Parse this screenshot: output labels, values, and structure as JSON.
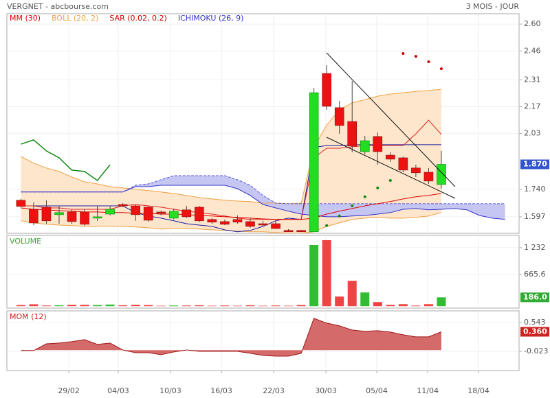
{
  "header": {
    "title": "VERGNET - abcbourse.com",
    "period": "3 MOIS - JOUR"
  },
  "chart_data": [
    {
      "type": "candlestick",
      "legend": [
        {
          "name": "MM (30)",
          "color": "#dd0000"
        },
        {
          "name": "BOLL (20, 2)",
          "color": "#f0a040"
        },
        {
          "name": "SAR (0.02, 0.2)",
          "color": "#cc0000"
        },
        {
          "name": "ICHIMOKU (26, 9)",
          "color": "#3333cc"
        }
      ],
      "open": [
        1.683,
        1.636,
        1.647,
        1.608,
        1.622,
        1.622,
        1.59,
        1.611,
        1.661,
        1.654,
        1.647,
        1.622,
        1.59,
        1.633,
        1.647,
        1.583,
        1.572,
        1.583,
        1.572,
        1.561,
        1.561,
        1.526,
        1.526,
        1.519,
        2.343,
        2.165,
        2.093,
        1.936,
        2.015,
        1.918,
        1.904,
        1.851,
        1.829,
        1.765
      ],
      "high": [
        1.69,
        1.672,
        1.683,
        1.654,
        1.633,
        1.636,
        1.654,
        1.654,
        1.668,
        1.661,
        1.654,
        1.629,
        1.64,
        1.654,
        1.654,
        1.59,
        1.583,
        1.604,
        1.59,
        1.576,
        1.576,
        1.533,
        1.529,
        2.268,
        2.386,
        2.2,
        2.304,
        2.018,
        2.036,
        1.933,
        1.911,
        1.868,
        1.851,
        1.94
      ],
      "low": [
        1.647,
        1.554,
        1.561,
        1.561,
        1.561,
        1.551,
        1.576,
        1.604,
        1.647,
        1.576,
        1.572,
        1.604,
        1.583,
        1.59,
        1.569,
        1.561,
        1.554,
        1.561,
        1.54,
        1.547,
        1.533,
        1.519,
        1.519,
        1.519,
        2.154,
        2.029,
        1.933,
        1.922,
        1.868,
        1.883,
        1.829,
        1.804,
        1.768,
        1.743
      ],
      "close": [
        1.651,
        1.565,
        1.576,
        1.619,
        1.572,
        1.558,
        1.597,
        1.636,
        1.654,
        1.608,
        1.579,
        1.615,
        1.626,
        1.597,
        1.576,
        1.569,
        1.558,
        1.569,
        1.547,
        1.554,
        1.536,
        1.519,
        1.519,
        2.243,
        2.172,
        2.072,
        1.965,
        1.993,
        1.936,
        1.897,
        1.84,
        1.826,
        1.783,
        1.87
      ],
      "up_color": "#22dd22",
      "down_color": "#ee1111",
      "mm": {
        "color": "#dd0000",
        "values": [
          1.643,
          1.636,
          1.633,
          1.629,
          1.626,
          1.622,
          1.622,
          1.619,
          1.619,
          1.615,
          1.615,
          1.611,
          1.611,
          1.608,
          1.604,
          1.601,
          1.597,
          1.594,
          1.59,
          1.586,
          1.583,
          1.583,
          1.583,
          1.59,
          1.611,
          1.626,
          1.64,
          1.654,
          1.665,
          1.676,
          1.69,
          1.701,
          1.708,
          1.718
        ]
      },
      "bollinger": {
        "color": "#f0a040",
        "fill": "#fde6cc",
        "upper": [
          1.911,
          1.876,
          1.851,
          1.833,
          1.804,
          1.779,
          1.768,
          1.754,
          1.747,
          1.74,
          1.733,
          1.726,
          1.718,
          1.708,
          1.697,
          1.69,
          1.683,
          1.679,
          1.676,
          1.668,
          1.668,
          1.665,
          1.668,
          1.958,
          2.075,
          2.154,
          2.19,
          2.207,
          2.225,
          2.236,
          2.243,
          2.25,
          2.254,
          2.261
        ],
        "lower": [
          1.576,
          1.565,
          1.558,
          1.554,
          1.551,
          1.547,
          1.547,
          1.547,
          1.547,
          1.544,
          1.54,
          1.533,
          1.536,
          1.536,
          1.533,
          1.529,
          1.526,
          1.522,
          1.519,
          1.519,
          1.515,
          1.511,
          1.511,
          1.519,
          1.547,
          1.565,
          1.583,
          1.59,
          1.594,
          1.59,
          1.59,
          1.594,
          1.601,
          1.619
        ]
      },
      "sar": {
        "above_color": "#cc0000",
        "below_color": "#118811",
        "values": [
          null,
          null,
          null,
          null,
          null,
          null,
          null,
          null,
          null,
          null,
          null,
          null,
          null,
          null,
          null,
          null,
          null,
          null,
          null,
          null,
          null,
          null,
          null,
          null,
          1.551,
          1.601,
          1.654,
          1.701,
          1.747,
          1.786,
          2.447,
          2.432,
          2.404,
          2.368
        ]
      },
      "ichimoku": {
        "tenkan_color": "#dd2222",
        "kijun_color": "#1a1aa0",
        "chikou_color": "#118811",
        "span_a_color": "#5555dd",
        "span_b_color": "#3333cc",
        "cloud_fill": "#c6c6f2",
        "tenkan": [
          1.654,
          1.654,
          1.643,
          1.643,
          1.636,
          1.636,
          1.636,
          1.636,
          1.654,
          1.661,
          1.654,
          1.647,
          1.636,
          1.626,
          1.619,
          1.611,
          1.601,
          1.59,
          1.583,
          1.583,
          1.583,
          1.583,
          1.583,
          1.904,
          1.954,
          1.954,
          1.961,
          1.968,
          1.968,
          1.968,
          1.968,
          2.029,
          2.1,
          2.025
        ],
        "kijun": [
          1.654,
          1.654,
          1.654,
          1.654,
          1.654,
          1.654,
          1.654,
          1.654,
          1.654,
          1.619,
          1.601,
          1.59,
          1.576,
          1.561,
          1.554,
          1.547,
          1.529,
          1.519,
          1.526,
          1.547,
          1.576,
          1.59,
          1.583,
          1.958,
          1.968,
          1.968,
          1.972,
          1.972,
          1.972,
          1.972,
          1.972,
          1.972,
          1.972,
          1.972
        ],
        "chikou": [
          1.975,
          1.997,
          1.94,
          1.904,
          1.84,
          1.833,
          1.786,
          1.868,
          null,
          null,
          null,
          null,
          null,
          null,
          null,
          null,
          null,
          null,
          null,
          null,
          null,
          null,
          null,
          null,
          null,
          null,
          null,
          null,
          null,
          null,
          null,
          null,
          null,
          null
        ],
        "span_a": [
          1.726,
          1.726,
          1.726,
          1.726,
          1.726,
          1.726,
          1.726,
          1.726,
          1.726,
          1.761,
          1.768,
          1.79,
          1.811,
          1.811,
          1.811,
          1.811,
          1.811,
          1.79,
          1.761,
          1.708,
          1.668,
          1.665,
          1.665,
          1.665,
          1.665,
          1.665,
          1.665,
          1.665,
          1.665,
          1.665,
          1.665,
          1.665,
          1.665,
          1.665,
          1.665,
          1.665,
          1.665,
          1.665,
          1.665
        ],
        "span_b": [
          1.726,
          1.726,
          1.726,
          1.726,
          1.726,
          1.726,
          1.726,
          1.726,
          1.726,
          1.754,
          1.754,
          1.761,
          1.761,
          1.761,
          1.761,
          1.761,
          1.761,
          1.743,
          1.708,
          1.661,
          1.643,
          1.626,
          1.611,
          1.604,
          1.597,
          1.597,
          1.601,
          1.604,
          1.611,
          1.619,
          1.636,
          1.64,
          1.633,
          1.636,
          1.64,
          1.633,
          1.604,
          1.59,
          1.583
        ]
      },
      "last_label": "1.870",
      "last_label_color": "#3355cc",
      "ylim": [
        1.511,
        2.654
      ],
      "yticks": [
        {
          "value": 2.6,
          "label": "2.60"
        },
        {
          "value": 2.46,
          "label": "2.46"
        },
        {
          "value": 2.31,
          "label": "2.31"
        },
        {
          "value": 2.17,
          "label": "2.17"
        },
        {
          "value": 2.03,
          "label": "2.03"
        },
        {
          "value": 1.74,
          "label": "1.740"
        },
        1.597
      ],
      "grid": true
    },
    {
      "type": "bar",
      "title": "VOLUME",
      "title_color": "#33aa33",
      "values": [
        25,
        40,
        15,
        20,
        30,
        30,
        25,
        35,
        20,
        30,
        25,
        10,
        15,
        15,
        20,
        10,
        15,
        10,
        20,
        10,
        15,
        10,
        25,
        1288,
        1389,
        203,
        535,
        289,
        87,
        29,
        43,
        14,
        43,
        186
      ],
      "up_color": "#33bb33",
      "down_color": "#f04444",
      "last_label": "186.0",
      "last_label_color": "#33aa33",
      "ylim": [
        -40,
        1490
      ],
      "yticks": [
        {
          "value": 1232,
          "label": "1 232"
        },
        665.6
      ],
      "grid": true
    },
    {
      "type": "area",
      "title": "MOM (12)",
      "title_color": "#cc2222",
      "values": [
        -0.009,
        -0.009,
        0.125,
        0.139,
        0.166,
        0.206,
        0.112,
        0.139,
        0.004,
        -0.05,
        -0.05,
        -0.09,
        -0.036,
        0.004,
        -0.023,
        -0.023,
        -0.023,
        -0.023,
        -0.063,
        -0.104,
        -0.117,
        -0.117,
        -0.063,
        0.624,
        0.53,
        0.476,
        0.395,
        0.368,
        0.381,
        0.355,
        0.301,
        0.26,
        0.26,
        0.36
      ],
      "color": "#d46a6a",
      "line_color": "#a01818",
      "last_label": "0.360",
      "last_label_color": "#cc2222",
      "ylim": [
        -0.4,
        0.77
      ],
      "yticks": [
        0.543,
        -0.023
      ],
      "xlim": [
        -1.1,
        39.1
      ],
      "xticks": [
        {
          "value": 3.76,
          "label": "29/02"
        },
        {
          "value": 7.64,
          "label": "04/03"
        },
        {
          "value": 11.74,
          "label": "10/03"
        },
        {
          "value": 15.74,
          "label": "16/03"
        },
        {
          "value": 19.84,
          "label": "22/03"
        },
        {
          "value": 23.94,
          "label": "30/03"
        },
        {
          "value": 27.93,
          "label": "05/04"
        },
        {
          "value": 31.93,
          "label": "11/04"
        },
        {
          "value": 35.92,
          "label": "18/04"
        }
      ],
      "grid": true
    }
  ]
}
